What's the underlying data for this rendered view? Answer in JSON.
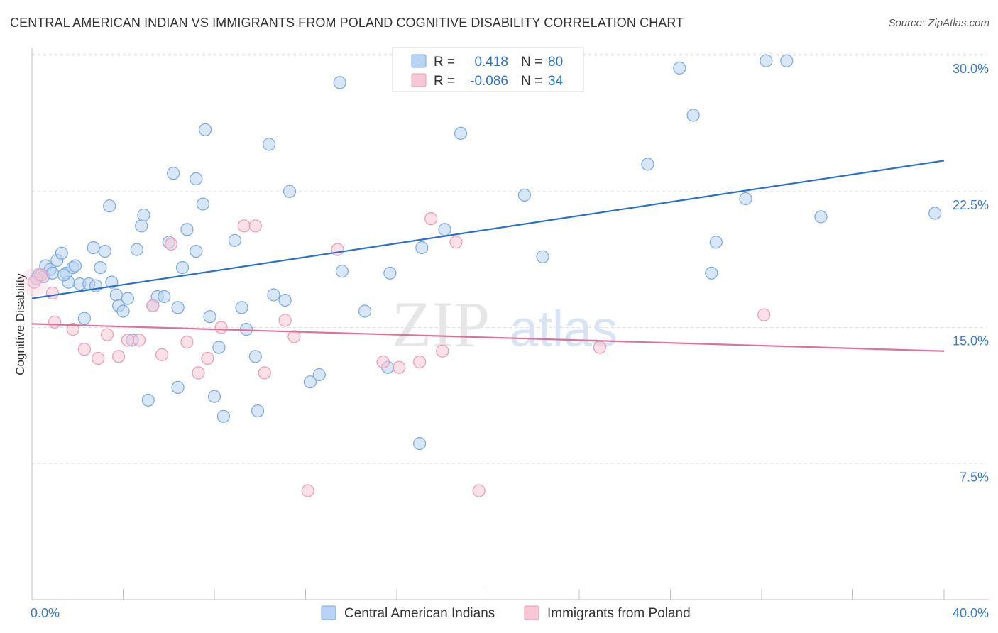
{
  "title": "CENTRAL AMERICAN INDIAN VS IMMIGRANTS FROM POLAND COGNITIVE DISABILITY CORRELATION CHART",
  "source": "Source: ZipAtlas.com",
  "watermark": {
    "zip": "ZIP",
    "atlas": "atlas"
  },
  "legend": {
    "rows": [
      {
        "r_label": "R =",
        "r_value": "0.418",
        "n_label": "N =",
        "n_value": "80"
      },
      {
        "r_label": "R =",
        "r_value": "-0.086",
        "n_label": "N =",
        "n_value": "34"
      }
    ]
  },
  "colors": {
    "blue_fill": "#b8d3f3",
    "blue_stroke": "#7aa7de",
    "blue_line": "#2a6fd0",
    "pink_fill": "#f7c7d6",
    "pink_stroke": "#e99ab4",
    "pink_line": "#e0709a",
    "tick_text": "#3b78c8"
  },
  "chart_data": {
    "type": "scatter",
    "ylabel": "Cognitive Disability",
    "xlim": [
      0,
      40
    ],
    "ylim": [
      0,
      30
    ],
    "y_ticks": [
      "7.5%",
      "15.0%",
      "22.5%",
      "30.0%"
    ],
    "y_tick_values": [
      7.5,
      15,
      22.5,
      30
    ],
    "x_tick_labels": [
      "0.0%",
      "40.0%"
    ],
    "grid": true,
    "legend_position": "bottom",
    "series": [
      {
        "name": "Central American Indians",
        "color": "blue",
        "trend": {
          "x": [
            0,
            40
          ],
          "y": [
            16.6,
            24.2
          ]
        },
        "points": [
          [
            0.3,
            17.9
          ],
          [
            0.5,
            17.8
          ],
          [
            0.6,
            18.4
          ],
          [
            0.8,
            18.2
          ],
          [
            0.9,
            18.0
          ],
          [
            1.1,
            18.7
          ],
          [
            1.3,
            19.1
          ],
          [
            1.5,
            18.0
          ],
          [
            1.6,
            17.5
          ],
          [
            1.8,
            18.3
          ],
          [
            1.9,
            18.4
          ],
          [
            2.1,
            17.4
          ],
          [
            2.3,
            15.5
          ],
          [
            2.5,
            17.4
          ],
          [
            2.7,
            19.4
          ],
          [
            2.8,
            17.3
          ],
          [
            3.0,
            18.3
          ],
          [
            3.2,
            19.2
          ],
          [
            3.4,
            21.7
          ],
          [
            3.5,
            17.5
          ],
          [
            3.7,
            16.8
          ],
          [
            3.8,
            16.2
          ],
          [
            4.0,
            15.9
          ],
          [
            4.2,
            16.6
          ],
          [
            4.4,
            14.3
          ],
          [
            4.6,
            19.3
          ],
          [
            4.8,
            20.6
          ],
          [
            4.9,
            21.2
          ],
          [
            5.1,
            11.0
          ],
          [
            5.3,
            16.2
          ],
          [
            5.5,
            16.7
          ],
          [
            5.8,
            16.7
          ],
          [
            6.0,
            19.7
          ],
          [
            6.2,
            23.5
          ],
          [
            6.4,
            11.7
          ],
          [
            6.4,
            16.1
          ],
          [
            6.6,
            18.3
          ],
          [
            6.8,
            20.4
          ],
          [
            7.2,
            19.2
          ],
          [
            7.2,
            23.2
          ],
          [
            7.5,
            21.8
          ],
          [
            7.6,
            25.9
          ],
          [
            7.8,
            15.6
          ],
          [
            8.0,
            11.2
          ],
          [
            8.2,
            13.9
          ],
          [
            8.4,
            10.1
          ],
          [
            8.9,
            19.8
          ],
          [
            9.2,
            16.1
          ],
          [
            9.4,
            14.9
          ],
          [
            9.8,
            13.4
          ],
          [
            9.9,
            10.4
          ],
          [
            10.4,
            25.1
          ],
          [
            10.6,
            16.8
          ],
          [
            11.1,
            16.5
          ],
          [
            11.3,
            22.5
          ],
          [
            12.2,
            12.0
          ],
          [
            12.6,
            12.4
          ],
          [
            13.5,
            28.5
          ],
          [
            13.6,
            18.1
          ],
          [
            14.6,
            15.9
          ],
          [
            15.6,
            12.8
          ],
          [
            15.7,
            18.0
          ],
          [
            17.0,
            8.6
          ],
          [
            17.1,
            19.4
          ],
          [
            18.1,
            20.4
          ],
          [
            18.8,
            25.7
          ],
          [
            21.6,
            22.3
          ],
          [
            22.4,
            18.9
          ],
          [
            27.0,
            24.0
          ],
          [
            28.4,
            29.3
          ],
          [
            29.0,
            26.7
          ],
          [
            29.8,
            18.0
          ],
          [
            30.0,
            19.7
          ],
          [
            31.3,
            22.1
          ],
          [
            32.2,
            29.7
          ],
          [
            33.1,
            29.7
          ],
          [
            34.6,
            21.1
          ],
          [
            39.6,
            21.3
          ],
          [
            0.2,
            17.7
          ],
          [
            1.4,
            17.9
          ]
        ]
      },
      {
        "name": "Immigrants from Poland",
        "color": "pink",
        "trend": {
          "x": [
            0,
            40
          ],
          "y": [
            15.2,
            13.7
          ]
        },
        "points": [
          [
            0.1,
            17.5
          ],
          [
            0.4,
            17.9
          ],
          [
            0.9,
            16.9
          ],
          [
            1.0,
            15.3
          ],
          [
            1.8,
            14.9
          ],
          [
            2.3,
            13.8
          ],
          [
            2.9,
            13.3
          ],
          [
            3.3,
            14.6
          ],
          [
            3.8,
            13.4
          ],
          [
            4.2,
            14.3
          ],
          [
            4.7,
            14.3
          ],
          [
            5.3,
            16.2
          ],
          [
            5.7,
            13.5
          ],
          [
            6.1,
            19.6
          ],
          [
            6.8,
            14.2
          ],
          [
            7.3,
            12.5
          ],
          [
            7.7,
            13.3
          ],
          [
            8.3,
            15.0
          ],
          [
            9.3,
            20.6
          ],
          [
            9.8,
            20.6
          ],
          [
            10.2,
            12.5
          ],
          [
            11.1,
            15.4
          ],
          [
            11.5,
            14.5
          ],
          [
            12.1,
            6.0
          ],
          [
            13.4,
            19.3
          ],
          [
            15.4,
            13.1
          ],
          [
            16.1,
            12.8
          ],
          [
            17.0,
            13.1
          ],
          [
            17.5,
            21.0
          ],
          [
            18.0,
            13.7
          ],
          [
            18.6,
            19.7
          ],
          [
            19.6,
            6.0
          ],
          [
            24.9,
            13.9
          ],
          [
            32.1,
            15.7
          ]
        ]
      }
    ]
  }
}
